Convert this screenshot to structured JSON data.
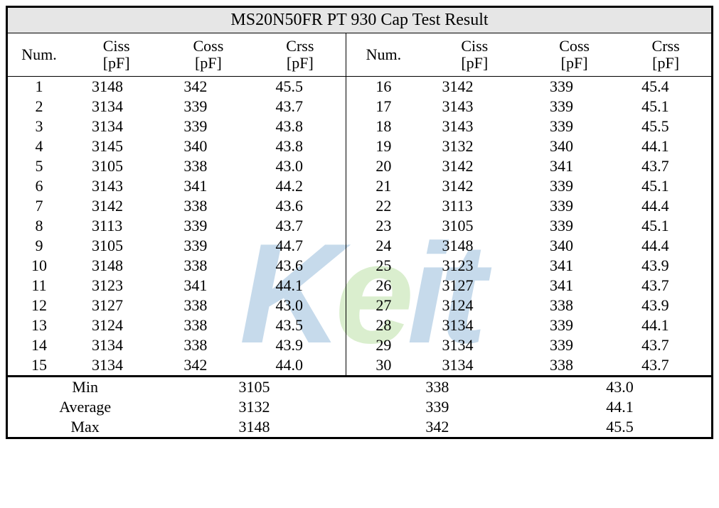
{
  "title": "MS20N50FR  PT  930  Cap  Test  Result",
  "watermark": {
    "k": "K",
    "e": "e",
    "i": "i",
    "t": "t"
  },
  "title_bg": "#e6e6e6",
  "font_family": "Times New Roman",
  "header_fontsize": 22,
  "data_fontsize": 22,
  "columns": {
    "num": "Num.",
    "ciss": "Ciss",
    "coss": "Coss",
    "crss": "Crss",
    "unit": "[pF]"
  },
  "rows": [
    {
      "n": "1",
      "ciss": "3148",
      "coss": "342",
      "crss": "45.5",
      "n2": "16",
      "ciss2": "3142",
      "coss2": "339",
      "crss2": "45.4"
    },
    {
      "n": "2",
      "ciss": "3134",
      "coss": "339",
      "crss": "43.7",
      "n2": "17",
      "ciss2": "3143",
      "coss2": "339",
      "crss2": "45.1"
    },
    {
      "n": "3",
      "ciss": "3134",
      "coss": "339",
      "crss": "43.8",
      "n2": "18",
      "ciss2": "3143",
      "coss2": "339",
      "crss2": "45.5"
    },
    {
      "n": "4",
      "ciss": "3145",
      "coss": "340",
      "crss": "43.8",
      "n2": "19",
      "ciss2": "3132",
      "coss2": "340",
      "crss2": "44.1"
    },
    {
      "n": "5",
      "ciss": "3105",
      "coss": "338",
      "crss": "43.0",
      "n2": "20",
      "ciss2": "3142",
      "coss2": "341",
      "crss2": "43.7"
    },
    {
      "n": "6",
      "ciss": "3143",
      "coss": "341",
      "crss": "44.2",
      "n2": "21",
      "ciss2": "3142",
      "coss2": "339",
      "crss2": "45.1"
    },
    {
      "n": "7",
      "ciss": "3142",
      "coss": "338",
      "crss": "43.6",
      "n2": "22",
      "ciss2": "3113",
      "coss2": "339",
      "crss2": "44.4"
    },
    {
      "n": "8",
      "ciss": "3113",
      "coss": "339",
      "crss": "43.7",
      "n2": "23",
      "ciss2": "3105",
      "coss2": "339",
      "crss2": "45.1"
    },
    {
      "n": "9",
      "ciss": "3105",
      "coss": "339",
      "crss": "44.7",
      "n2": "24",
      "ciss2": "3148",
      "coss2": "340",
      "crss2": "44.4"
    },
    {
      "n": "10",
      "ciss": "3148",
      "coss": "338",
      "crss": "43.6",
      "n2": "25",
      "ciss2": "3123",
      "coss2": "341",
      "crss2": "43.9"
    },
    {
      "n": "11",
      "ciss": "3123",
      "coss": "341",
      "crss": "44.1",
      "n2": "26",
      "ciss2": "3127",
      "coss2": "341",
      "crss2": "43.7"
    },
    {
      "n": "12",
      "ciss": "3127",
      "coss": "338",
      "crss": "43.0",
      "n2": "27",
      "ciss2": "3124",
      "coss2": "338",
      "crss2": "43.9"
    },
    {
      "n": "13",
      "ciss": "3124",
      "coss": "338",
      "crss": "43.5",
      "n2": "28",
      "ciss2": "3134",
      "coss2": "339",
      "crss2": "44.1"
    },
    {
      "n": "14",
      "ciss": "3134",
      "coss": "338",
      "crss": "43.9",
      "n2": "29",
      "ciss2": "3134",
      "coss2": "339",
      "crss2": "43.7"
    },
    {
      "n": "15",
      "ciss": "3134",
      "coss": "342",
      "crss": "44.0",
      "n2": "30",
      "ciss2": "3134",
      "coss2": "338",
      "crss2": "43.7"
    }
  ],
  "summary": {
    "labels": {
      "min": "Min",
      "avg": "Average",
      "max": "Max"
    },
    "min": {
      "ciss": "3105",
      "coss": "338",
      "crss": "43.0"
    },
    "avg": {
      "ciss": "3132",
      "coss": "339",
      "crss": "44.1"
    },
    "max": {
      "ciss": "3148",
      "coss": "342",
      "crss": "45.5"
    }
  }
}
